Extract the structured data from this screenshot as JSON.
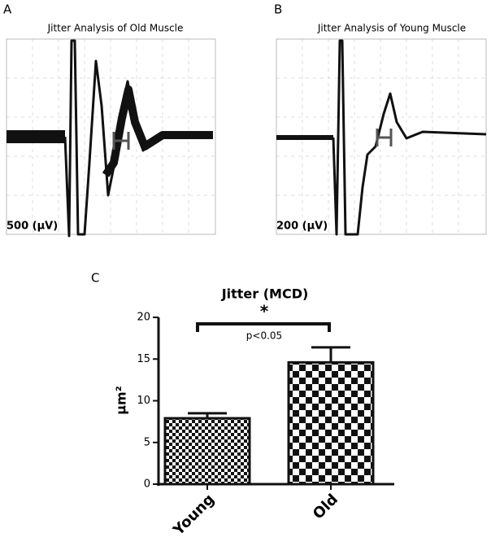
{
  "panels": [
    {
      "letter": "A",
      "title": "Jitter Analysis of Old Muscle",
      "scale_label": "500 (µV)"
    },
    {
      "letter": "B",
      "title": "Jitter Analysis of Young Muscle",
      "scale_label": "200 (µV)"
    }
  ],
  "chart_data": {
    "type": "bar",
    "letter": "C",
    "title": "Jitter (MCD)",
    "y_label": "µm²",
    "categories": [
      "Young",
      "Old"
    ],
    "values": [
      7.9,
      14.6
    ],
    "errors": [
      0.6,
      1.8
    ],
    "ylim": [
      0,
      20
    ],
    "yticks": [
      0,
      5,
      10,
      15,
      20
    ],
    "annotations": [
      "*",
      "p<0.05"
    ]
  }
}
